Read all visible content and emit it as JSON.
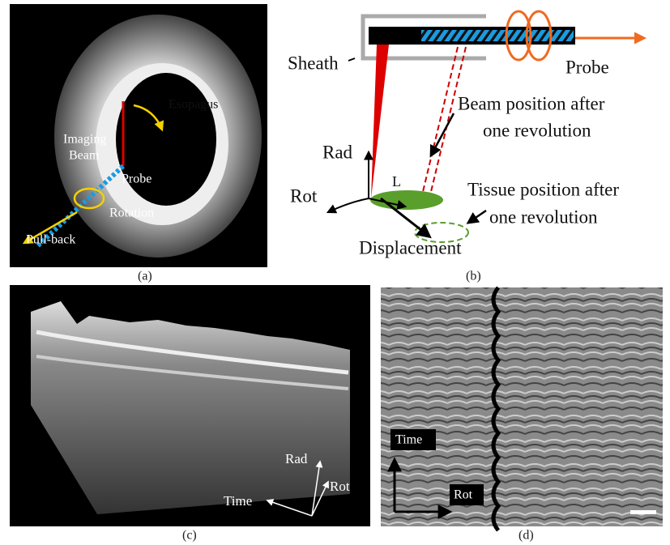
{
  "panels": [
    {
      "caption": "(a)",
      "labels": {
        "organ": "Esopagus",
        "beam": [
          "Imaging",
          "Beam"
        ],
        "probe": "Probe",
        "rotation": "Rotation",
        "pullback": "Pull-back"
      }
    },
    {
      "caption": "(b)",
      "labels": {
        "sheath": "Sheath",
        "probe": "Probe",
        "beam_after": [
          "Beam position after",
          "one revolution"
        ],
        "rad": "Rad",
        "rot": "Rot",
        "length": "L",
        "tissue_after": [
          "Tissue position after",
          "one revolution"
        ],
        "displacement": "Displacement"
      }
    },
    {
      "caption": "(c)",
      "labels": {
        "rad": "Rad",
        "rot": "Rot",
        "time": "Time"
      }
    },
    {
      "caption": "(d)",
      "labels": {
        "time": "Time",
        "rot": "Rot"
      }
    }
  ]
}
